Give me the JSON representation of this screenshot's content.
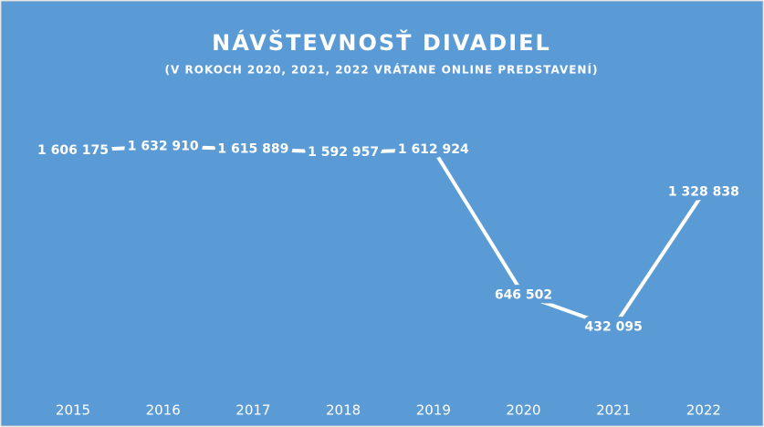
{
  "chart_data": {
    "type": "line",
    "title": "NÁVŠTEVNOSŤ DIVADIEL",
    "subtitle": "(V ROKOCH 2020, 2021, 2022 VRÁTANE ONLINE PREDSTAVENÍ)",
    "categories": [
      "2015",
      "2016",
      "2017",
      "2018",
      "2019",
      "2020",
      "2021",
      "2022"
    ],
    "values": [
      1606175,
      1632910,
      1615889,
      1592957,
      1612924,
      646502,
      432095,
      1328838
    ],
    "value_labels": [
      "1 606 175",
      "1 632 910",
      "1 615 889",
      "1 592 957",
      "1 612 924",
      "646 502",
      "432 095",
      "1 328 838"
    ],
    "color": "#ffffff",
    "ylim": [
      0,
      1800000
    ]
  }
}
